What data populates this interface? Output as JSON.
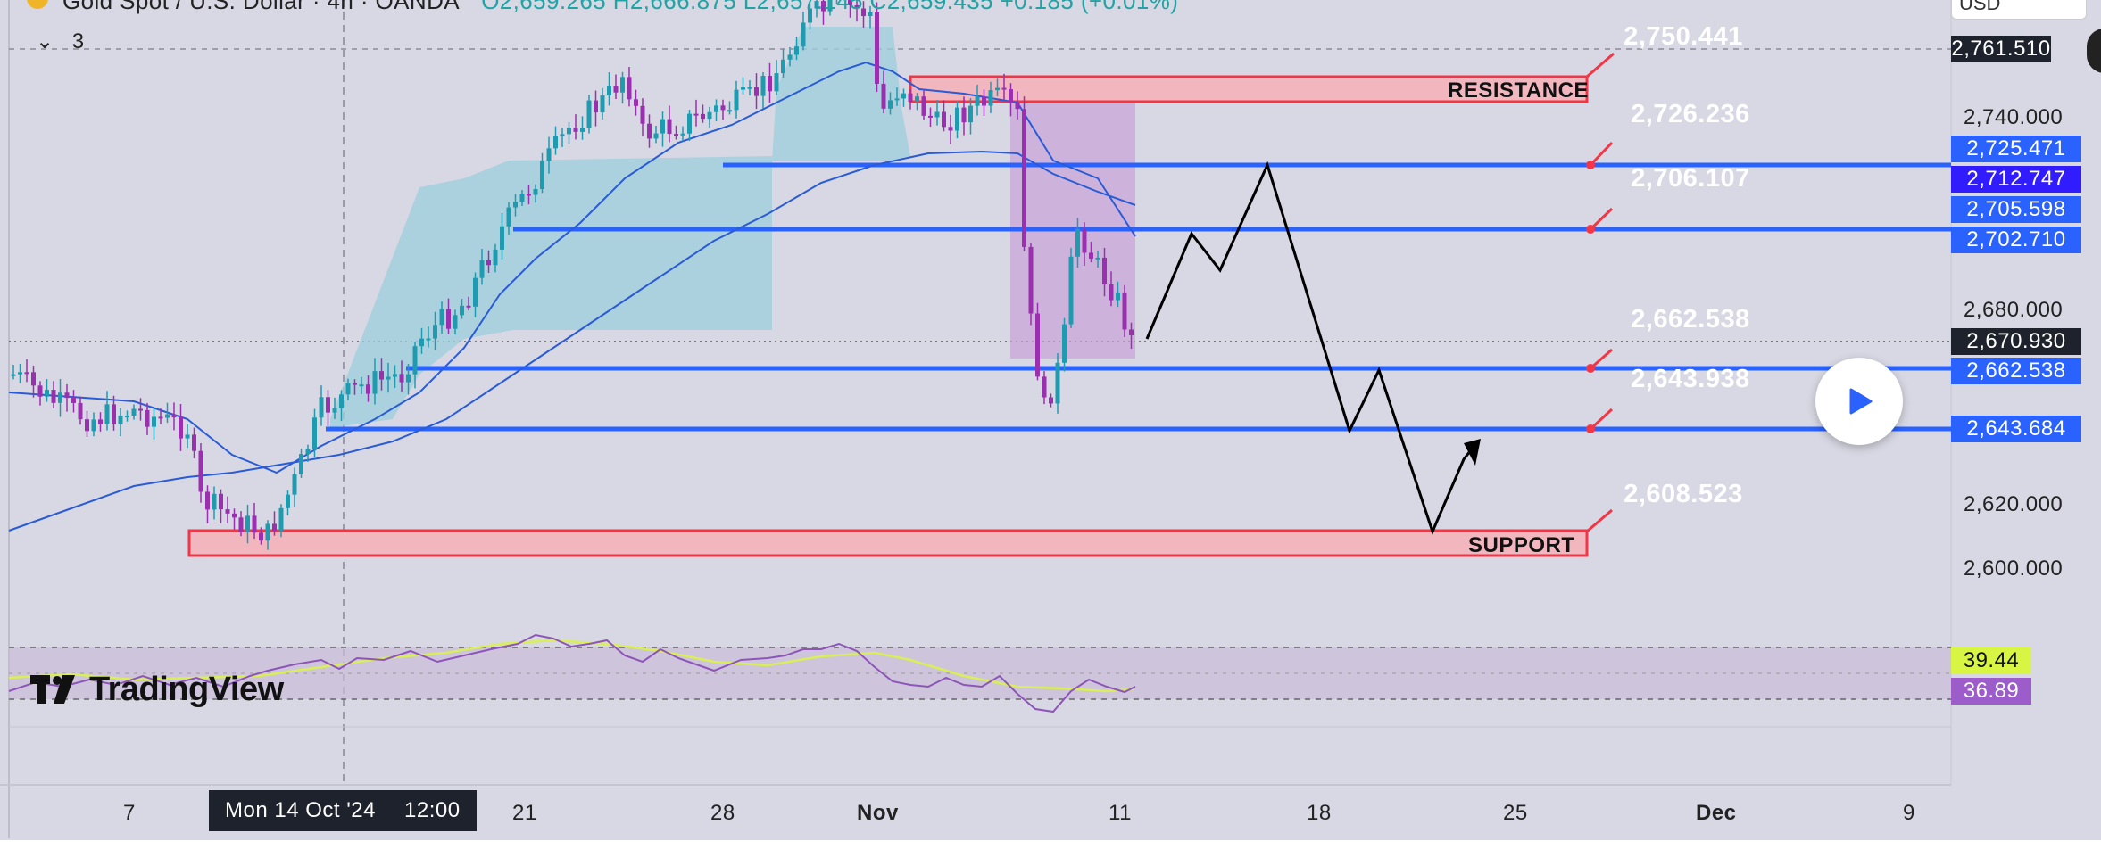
{
  "header": {
    "symbol": "Gold Spot / U.S. Dollar · 4h · OANDA",
    "ohlc": "O2,659.265 H2,666.875 L2,657.145 C2,659.435 +0.185 (+0.01%)",
    "hidden_indicators_count": "3",
    "currency": "USD"
  },
  "price_axis": {
    "ticks": [
      "2,740.000",
      "2,680.000",
      "2,620.000",
      "2,600.000"
    ],
    "tags": [
      {
        "label": "2,761.510",
        "color": "#1e222d"
      },
      {
        "label": "2,725.471",
        "color": "#2962ff"
      },
      {
        "label": "2,712.747",
        "color": "#311bff"
      },
      {
        "label": "2,705.598",
        "color": "#2962ff"
      },
      {
        "label": "2,702.710",
        "color": "#2962ff"
      },
      {
        "label": "2,670.930",
        "color": "#1e222d"
      },
      {
        "label": "2,662.538",
        "color": "#2962ff"
      },
      {
        "label": "2,643.684",
        "color": "#2962ff"
      }
    ]
  },
  "callouts": [
    {
      "label": "2,750.441",
      "color": "#f23645"
    },
    {
      "label": "2,726.236",
      "color": "#f23645"
    },
    {
      "label": "2,706.107",
      "color": "#f23645"
    },
    {
      "label": "2,662.538",
      "color": "#f23645"
    },
    {
      "label": "2,643.938",
      "color": "#f23645"
    },
    {
      "label": "2,608.523",
      "color": "#f23645"
    }
  ],
  "zones": {
    "resistance_label": "RESISTANCE",
    "support_label": "SUPPORT"
  },
  "rsi": {
    "value_1": "39.44",
    "value_1_color": "#d7f542",
    "value_2": "36.89",
    "value_2_color": "#9c5cc9"
  },
  "time_axis": {
    "labels": [
      "7",
      "21",
      "28",
      "Nov",
      "11",
      "18",
      "25",
      "Dec",
      "9"
    ],
    "cursor_date": "Mon 14 Oct '24",
    "cursor_time": "12:00"
  },
  "branding": {
    "logo_text": "TradingView"
  },
  "controls": {
    "play_icon": "play-icon"
  }
}
